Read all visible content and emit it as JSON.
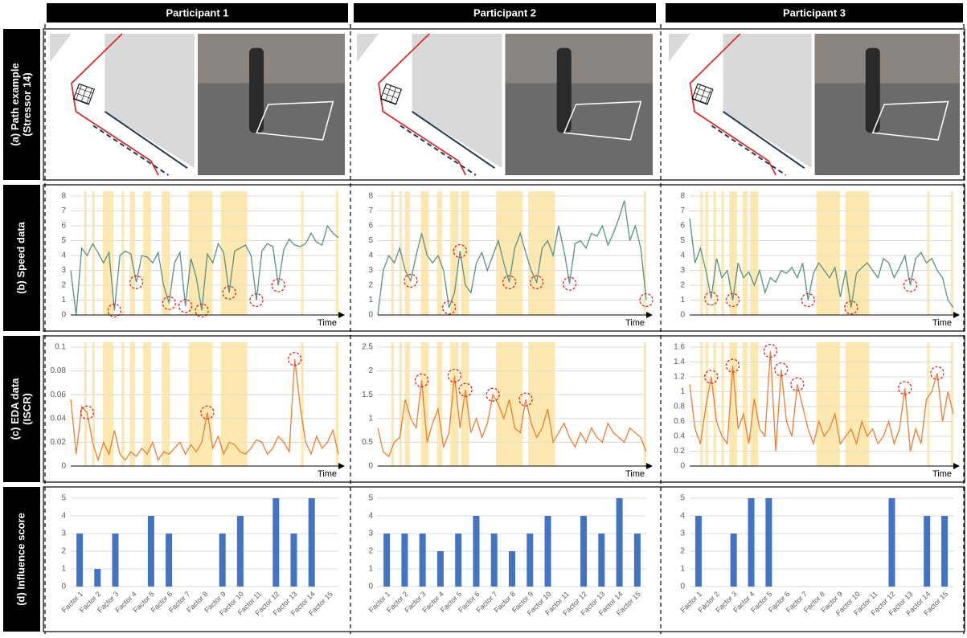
{
  "column_headers": [
    "Participant 1",
    "Participant 2",
    "Participant 3"
  ],
  "row_labels": [
    [
      "(a) Path example",
      "(Stressor 14)"
    ],
    [
      "(b) Speed data"
    ],
    [
      "(c) EDA data",
      "(ISCR)"
    ],
    [
      "(d) Influence score"
    ]
  ],
  "chart_data": [
    {
      "type": "line",
      "x_label": "Time",
      "color": "#5b8f84",
      "ylim": [
        0,
        8
      ],
      "yticks": [
        0,
        1,
        2,
        3,
        4,
        5,
        6,
        7,
        8
      ],
      "grid": true,
      "shade_color": "#fde9b0",
      "values": [
        3,
        0,
        4.5,
        4,
        4.8,
        4.2,
        3.5,
        4.2,
        0.3,
        4,
        4.3,
        4.1,
        2.2,
        4,
        3.9,
        3.5,
        4.2,
        2,
        0.8,
        3.5,
        4.2,
        0.6,
        3.8,
        2.5,
        0.3,
        4.1,
        3.5,
        4.8,
        4.2,
        1.5,
        4.3,
        4.5,
        4.7,
        4,
        1,
        4.3,
        4.8,
        4.6,
        2,
        4.4,
        5.1,
        4.7,
        4.6,
        4.8,
        5.5,
        4.9,
        4.7,
        6,
        5.5,
        5.2
      ],
      "circled": [
        8,
        12,
        18,
        21,
        24,
        29,
        34,
        38
      ],
      "shaded": [
        [
          2.5,
          3
        ],
        [
          4,
          4.5
        ],
        [
          6,
          8
        ],
        [
          9.5,
          10
        ],
        [
          11,
          12
        ],
        [
          13.5,
          15
        ],
        [
          17,
          18.5
        ],
        [
          22,
          26.5
        ],
        [
          28,
          33
        ],
        [
          43,
          43.5
        ],
        [
          49.5,
          50
        ]
      ]
    },
    {
      "type": "line",
      "x_label": "Time",
      "color": "#5b8f84",
      "ylim": [
        0,
        8
      ],
      "yticks": [
        0,
        1,
        2,
        3,
        4,
        5,
        6,
        7,
        8
      ],
      "grid": true,
      "shade_color": "#fde9b0",
      "values": [
        0,
        3,
        4,
        3.5,
        4.5,
        3,
        2.3,
        4,
        5.5,
        4,
        3.5,
        4,
        3,
        0.5,
        1.5,
        4.3,
        2,
        1.5,
        3.5,
        4.2,
        3,
        4,
        5,
        3.5,
        2.2,
        4.5,
        5.5,
        4.2,
        3,
        2.2,
        4.5,
        5,
        4,
        6,
        4.3,
        2.1,
        4.8,
        5,
        4.5,
        5.5,
        5.3,
        6,
        4.7,
        5.5,
        6.5,
        7.7,
        5,
        6,
        4.5,
        1
      ],
      "circled": [
        6,
        13,
        15,
        24,
        29,
        35,
        49
      ],
      "shaded": [
        [
          2.5,
          3
        ],
        [
          4,
          4.5
        ],
        [
          5,
          6
        ],
        [
          8,
          9.5
        ],
        [
          11,
          12
        ],
        [
          13.5,
          15
        ],
        [
          15.5,
          17
        ],
        [
          22,
          27
        ],
        [
          28,
          33
        ],
        [
          49.5,
          50
        ]
      ]
    },
    {
      "type": "line",
      "x_label": "Time",
      "color": "#5b8f84",
      "ylim": [
        0,
        8
      ],
      "yticks": [
        0,
        1,
        2,
        3,
        4,
        5,
        6,
        7,
        8
      ],
      "grid": true,
      "shade_color": "#fde9b0",
      "values": [
        6.5,
        3.5,
        4.5,
        3,
        1.1,
        3.8,
        2.5,
        3,
        1,
        3.5,
        2.5,
        2.9,
        2,
        3,
        1.5,
        2.5,
        2.2,
        3,
        2.8,
        3.2,
        2.5,
        3.5,
        1,
        2.8,
        3.5,
        3,
        2.5,
        3.2,
        1.2,
        3,
        0.5,
        2.8,
        3.2,
        3.5,
        3,
        2.5,
        3.8,
        3.5,
        2.5,
        3.2,
        4,
        2,
        3.8,
        4.2,
        3.5,
        3.8,
        3,
        2.5,
        1,
        0.5
      ],
      "circled": [
        4,
        8,
        22,
        30,
        41
      ],
      "shaded": [
        [
          2,
          2.5
        ],
        [
          3,
          3.5
        ],
        [
          4.5,
          5
        ],
        [
          6,
          6.5
        ],
        [
          7.5,
          9
        ],
        [
          10,
          11
        ],
        [
          11.5,
          13
        ],
        [
          24,
          28.5
        ],
        [
          29.5,
          34
        ],
        [
          45,
          45.5
        ],
        [
          49.5,
          50
        ]
      ]
    },
    {
      "type": "line",
      "x_label": "Time",
      "color": "#ed7d31",
      "ylim": [
        0,
        0.1
      ],
      "yticks": [
        0,
        0.02,
        0.04,
        0.06,
        0.08,
        0.1
      ],
      "grid": true,
      "shade_color": "#fde9b0",
      "values": [
        0.056,
        0.01,
        0.05,
        0.045,
        0.02,
        0.005,
        0.02,
        0.01,
        0.03,
        0.01,
        0.005,
        0.012,
        0.008,
        0.015,
        0.01,
        0.02,
        0.005,
        0.012,
        0.01,
        0.015,
        0.02,
        0.01,
        0.018,
        0.012,
        0.02,
        0.045,
        0.015,
        0.025,
        0.01,
        0.02,
        0.018,
        0.012,
        0.01,
        0.015,
        0.022,
        0.02,
        0.01,
        0.015,
        0.025,
        0.02,
        0.012,
        0.09,
        0.05,
        0.02,
        0.01,
        0.025,
        0.015,
        0.02,
        0.03,
        0.01
      ],
      "circled": [
        3,
        25,
        41
      ],
      "shaded": [
        [
          2.5,
          3
        ],
        [
          4,
          4.5
        ],
        [
          6,
          8
        ],
        [
          9.5,
          10
        ],
        [
          11,
          12
        ],
        [
          13.5,
          15
        ],
        [
          17,
          18.5
        ],
        [
          22,
          26.5
        ],
        [
          28,
          33
        ],
        [
          43,
          43.5
        ],
        [
          49.5,
          50
        ]
      ]
    },
    {
      "type": "line",
      "x_label": "Time",
      "color": "#ed7d31",
      "ylim": [
        0,
        2.5
      ],
      "yticks": [
        0,
        0.5,
        1,
        1.5,
        2,
        2.5
      ],
      "grid": true,
      "shade_color": "#fde9b0",
      "values": [
        0.8,
        0.3,
        0.2,
        0.5,
        0.6,
        1.4,
        1,
        0.8,
        1.8,
        0.5,
        0.9,
        1.2,
        0.4,
        0.7,
        1.9,
        0.8,
        1.6,
        0.7,
        1,
        0.6,
        0.9,
        1.5,
        1.3,
        1,
        1.4,
        0.8,
        0.7,
        1.4,
        0.9,
        0.6,
        0.8,
        1.2,
        0.5,
        0.7,
        0.9,
        0.6,
        0.4,
        0.7,
        0.5,
        0.8,
        0.6,
        0.5,
        0.9,
        0.7,
        0.6,
        0.5,
        0.8,
        0.7,
        0.6,
        0.3
      ],
      "circled": [
        8,
        14,
        16,
        21,
        27
      ],
      "shaded": [
        [
          2.5,
          3
        ],
        [
          4,
          4.5
        ],
        [
          5,
          6
        ],
        [
          8,
          9.5
        ],
        [
          11,
          12
        ],
        [
          13.5,
          15
        ],
        [
          15.5,
          17
        ],
        [
          22,
          27
        ],
        [
          28,
          33
        ],
        [
          49.5,
          50
        ]
      ]
    },
    {
      "type": "line",
      "x_label": "Time",
      "color": "#ed7d31",
      "ylim": [
        0,
        1.6
      ],
      "yticks": [
        0,
        0.2,
        0.4,
        0.6,
        0.8,
        1,
        1.2,
        1.4,
        1.6
      ],
      "grid": true,
      "shade_color": "#fde9b0",
      "values": [
        1.1,
        0.5,
        0.3,
        0.8,
        1.2,
        0.6,
        0.4,
        0.3,
        1.35,
        0.5,
        0.7,
        0.3,
        0.9,
        0.5,
        0.4,
        1.55,
        0.2,
        1.3,
        0.6,
        0.4,
        1.1,
        0.8,
        0.5,
        0.3,
        0.6,
        0.4,
        0.5,
        0.7,
        0.3,
        0.4,
        0.5,
        0.3,
        0.6,
        0.4,
        0.5,
        0.3,
        0.4,
        0.6,
        0.3,
        0.5,
        1.05,
        0.2,
        0.5,
        0.3,
        0.9,
        1.0,
        1.25,
        0.6,
        1.0,
        0.7
      ],
      "circled": [
        4,
        8,
        15,
        17,
        20,
        40,
        46
      ],
      "shaded": [
        [
          2,
          2.5
        ],
        [
          3,
          3.5
        ],
        [
          4.5,
          5
        ],
        [
          6,
          6.5
        ],
        [
          7.5,
          9
        ],
        [
          10,
          11
        ],
        [
          11.5,
          13
        ],
        [
          24,
          28.5
        ],
        [
          29.5,
          34
        ],
        [
          45,
          45.5
        ],
        [
          49.5,
          50
        ]
      ]
    },
    {
      "type": "bar",
      "color": "#4472c4",
      "ylim": [
        0,
        5
      ],
      "yticks": [
        0,
        1,
        2,
        3,
        4,
        5
      ],
      "grid": true,
      "categories": [
        "Factor 1",
        "Factor 2",
        "Factor 3",
        "Factor 4",
        "Factor 5",
        "Factor 6",
        "Factor 7",
        "Factor 8",
        "Factor 9",
        "Factor 10",
        "Factor 11",
        "Factor 12",
        "Factor 13",
        "Factor 14",
        "Factor 15"
      ],
      "values": [
        3,
        1,
        3,
        null,
        4,
        3,
        null,
        null,
        3,
        4,
        null,
        5,
        3,
        5,
        null
      ]
    },
    {
      "type": "bar",
      "color": "#4472c4",
      "ylim": [
        0,
        5
      ],
      "yticks": [
        0,
        1,
        2,
        3,
        4,
        5
      ],
      "grid": true,
      "categories": [
        "Factor 1",
        "Factor 2",
        "Factor 3",
        "Factor 4",
        "Factor 5",
        "Factor 6",
        "Factor 7",
        "Factor 8",
        "Factor 9",
        "Factor 10",
        "Factor 11",
        "Factor 12",
        "Factor 13",
        "Factor 14",
        "Factor 15"
      ],
      "values": [
        3,
        3,
        3,
        2,
        3,
        4,
        3,
        2,
        3,
        4,
        null,
        4,
        3,
        5,
        3
      ]
    },
    {
      "type": "bar",
      "color": "#4472c4",
      "ylim": [
        0,
        5
      ],
      "yticks": [
        0,
        1,
        2,
        3,
        4,
        5
      ],
      "grid": true,
      "categories": [
        "Factor 1",
        "Factor 2",
        "Factor 3",
        "Factor 4",
        "Factor 5",
        "Factor 6",
        "Factor 7",
        "Factor 8",
        "Factor 9",
        "Factor 10",
        "Factor 11",
        "Factor 12",
        "Factor 13",
        "Factor 14",
        "Factor 15"
      ],
      "values": [
        4,
        null,
        3,
        5,
        5,
        null,
        null,
        null,
        null,
        null,
        null,
        5,
        null,
        4,
        4
      ]
    }
  ]
}
